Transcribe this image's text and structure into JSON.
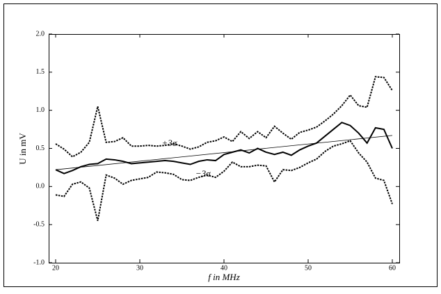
{
  "chart_data": {
    "type": "line",
    "x": [
      20,
      21,
      22,
      23,
      24,
      25,
      26,
      27,
      28,
      29,
      30,
      31,
      32,
      33,
      34,
      35,
      36,
      37,
      38,
      39,
      40,
      41,
      42,
      43,
      44,
      45,
      46,
      47,
      48,
      49,
      50,
      51,
      52,
      53,
      54,
      55,
      56,
      57,
      58,
      59,
      60
    ],
    "series": [
      {
        "color": "#000000",
        "style": "solid",
        "width": 2,
        "values": [
          0.22,
          0.17,
          0.21,
          0.26,
          0.29,
          0.3,
          0.36,
          0.35,
          0.33,
          0.3,
          0.31,
          0.32,
          0.33,
          0.34,
          0.33,
          0.31,
          0.29,
          0.33,
          0.35,
          0.34,
          0.42,
          0.45,
          0.48,
          0.44,
          0.5,
          0.45,
          0.42,
          0.45,
          0.41,
          0.48,
          0.53,
          0.57,
          0.66,
          0.75,
          0.84,
          0.8,
          0.7,
          0.57,
          0.77,
          0.75,
          0.5
        ]
      },
      {
        "color": "#000000",
        "style": "dotted",
        "width": 2,
        "values": [
          0.56,
          0.49,
          0.39,
          0.45,
          0.58,
          1.05,
          0.58,
          0.59,
          0.64,
          0.53,
          0.53,
          0.54,
          0.53,
          0.54,
          0.56,
          0.53,
          0.49,
          0.52,
          0.58,
          0.6,
          0.65,
          0.59,
          0.72,
          0.63,
          0.72,
          0.64,
          0.79,
          0.7,
          0.62,
          0.71,
          0.74,
          0.78,
          0.86,
          0.95,
          1.06,
          1.2,
          1.06,
          1.04,
          1.44,
          1.43,
          1.26
        ]
      },
      {
        "color": "#000000",
        "style": "dotted",
        "width": 2,
        "values": [
          -0.11,
          -0.13,
          0.03,
          0.06,
          -0.02,
          -0.45,
          0.15,
          0.11,
          0.03,
          0.08,
          0.1,
          0.12,
          0.19,
          0.18,
          0.16,
          0.09,
          0.08,
          0.12,
          0.15,
          0.12,
          0.2,
          0.32,
          0.26,
          0.26,
          0.28,
          0.27,
          0.06,
          0.22,
          0.21,
          0.25,
          0.31,
          0.36,
          0.46,
          0.53,
          0.56,
          0.6,
          0.44,
          0.32,
          0.11,
          0.08,
          -0.23
        ]
      },
      {
        "color": "#000000",
        "style": "solid",
        "width": 0.8,
        "x": [
          20,
          60
        ],
        "values": [
          0.22,
          0.67
        ]
      }
    ],
    "xlabel": "f in MHz",
    "ylabel": "U in mV",
    "annotations": [
      {
        "text": "+3σ",
        "x": 33.5,
        "y": 0.56
      },
      {
        "text": "−3σ",
        "x": 37.5,
        "y": 0.16
      }
    ],
    "xlim": [
      20,
      60
    ],
    "xticks": [
      20,
      30,
      40,
      50,
      60
    ],
    "ylim": [
      -1,
      2
    ],
    "yticks": [
      {
        "value": -1,
        "label": "-1.0"
      },
      -0.5,
      {
        "value": 0,
        "label": "0.0"
      },
      0.5,
      {
        "value": 1,
        "label": "1.0"
      },
      1.5,
      {
        "value": 2,
        "label": "2.0"
      }
    ]
  }
}
